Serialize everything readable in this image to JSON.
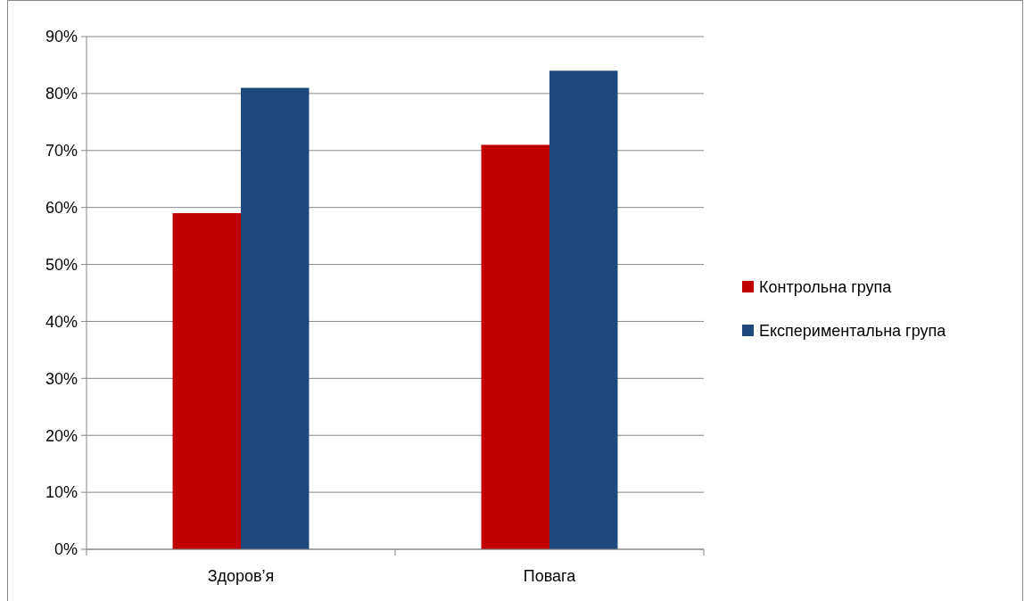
{
  "chart_data": {
    "type": "bar",
    "categories": [
      "Здоров’я",
      "Повага"
    ],
    "series": [
      {
        "name": "Контрольна група",
        "color": "#c00000",
        "values": [
          0.59,
          0.71
        ]
      },
      {
        "name": "Експериментальна група",
        "color": "#1f497d",
        "values": [
          0.81,
          0.84
        ]
      }
    ],
    "ylim": [
      0,
      0.9
    ],
    "yticks": [
      {
        "value": 0,
        "label": "0%"
      },
      {
        "value": 0.1,
        "label": "10%"
      },
      {
        "value": 0.2,
        "label": "20%"
      },
      {
        "value": 0.3,
        "label": "30%"
      },
      {
        "value": 0.4,
        "label": "40%"
      },
      {
        "value": 0.5,
        "label": "50%"
      },
      {
        "value": 0.6,
        "label": "60%"
      },
      {
        "value": 0.7,
        "label": "70%"
      },
      {
        "value": 0.8,
        "label": "80%"
      },
      {
        "value": 0.9,
        "label": "90%"
      }
    ],
    "grid": "y",
    "legend": "right"
  }
}
